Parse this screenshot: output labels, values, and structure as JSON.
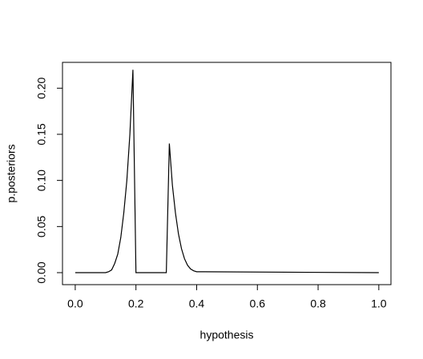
{
  "chart_data": {
    "type": "line",
    "x_label": "hypothesis",
    "y_label": "p.posteriors",
    "x": [
      0,
      0.1,
      0.11,
      0.12,
      0.13,
      0.14,
      0.15,
      0.16,
      0.17,
      0.18,
      0.19,
      0.2,
      0.3,
      0.31,
      0.32,
      0.33,
      0.34,
      0.35,
      0.36,
      0.37,
      0.38,
      0.39,
      0.4,
      1.0
    ],
    "values": [
      0,
      0,
      0.001,
      0.003,
      0.01,
      0.02,
      0.038,
      0.065,
      0.1,
      0.15,
      0.22,
      0,
      0,
      0.14,
      0.095,
      0.065,
      0.042,
      0.026,
      0.015,
      0.008,
      0.004,
      0.002,
      0.001,
      0
    ],
    "color": "#000000",
    "xlim": [
      -0.042,
      1.04
    ],
    "ylim": [
      -0.013,
      0.228
    ],
    "xticks": [
      {
        "value": 0,
        "label": "0.0"
      },
      0.2,
      0.4,
      0.6,
      0.8,
      {
        "value": 1,
        "label": "1.0"
      }
    ],
    "yticks": [
      {
        "value": 0,
        "label": "0.00"
      },
      {
        "value": 0.05,
        "label": "0.05"
      },
      {
        "value": 0.1,
        "label": "0.10"
      },
      {
        "value": 0.15,
        "label": "0.15"
      },
      {
        "value": 0.2,
        "label": "0.20"
      }
    ]
  }
}
